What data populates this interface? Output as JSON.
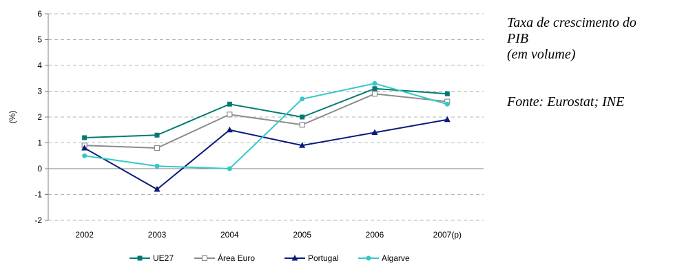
{
  "notes": {
    "title_line1": "Taxa de crescimento do",
    "title_line2": "PIB",
    "title_line3": "(em volume)",
    "source": "Fonte: Eurostat; INE"
  },
  "chart_data": {
    "type": "line",
    "ylabel": "(%)",
    "ylim": [
      -2,
      6
    ],
    "yticks": [
      -2,
      -1,
      0,
      1,
      2,
      3,
      4,
      5,
      6
    ],
    "categories": [
      "2002",
      "2003",
      "2004",
      "2005",
      "2006",
      "2007(p)"
    ],
    "grid": "horizontal dashed",
    "legend_position": "bottom",
    "series": [
      {
        "name": "UE27",
        "color": "#007a73",
        "marker": "square-filled",
        "values": [
          1.2,
          1.3,
          2.5,
          2.0,
          3.1,
          2.9
        ]
      },
      {
        "name": "Área Euro",
        "color": "#8c8c8c",
        "marker": "square-open",
        "values": [
          0.9,
          0.8,
          2.1,
          1.7,
          2.9,
          2.6
        ]
      },
      {
        "name": "Portugal",
        "color": "#0a1b7a",
        "marker": "triangle",
        "values": [
          0.8,
          -0.8,
          1.5,
          0.9,
          1.4,
          1.9
        ]
      },
      {
        "name": "Algarve",
        "color": "#33c9c6",
        "marker": "circle",
        "values": [
          0.5,
          0.1,
          0.0,
          2.7,
          3.3,
          2.5
        ]
      }
    ]
  }
}
